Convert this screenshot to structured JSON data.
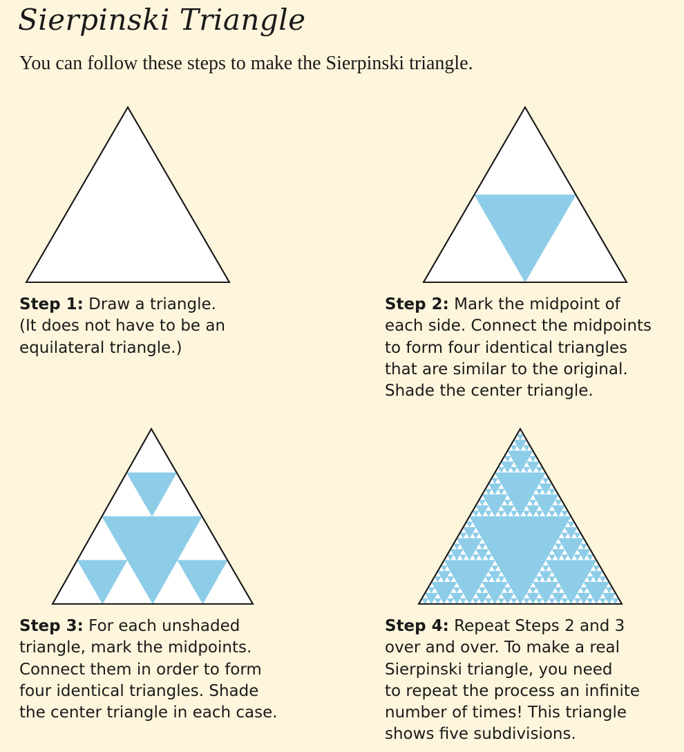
{
  "title": "Sierpinski Triangle",
  "intro": "You can follow these steps to make the Sierpinski triangle.",
  "colors": {
    "background": "#fdf5dc",
    "shade": "#8ecde8",
    "triangle_fill": "#ffffff",
    "outline": "#1a1a1a"
  },
  "steps": [
    {
      "label": "Step 1:",
      "lines": [
        "Draw a triangle.",
        "(It does not have to be an",
        "equilateral triangle.)"
      ],
      "subdivisions": 0
    },
    {
      "label": "Step 2:",
      "lines": [
        "Mark the midpoint of",
        "each side. Connect the midpoints",
        "to form four identical triangles",
        "that are similar to the original.",
        "Shade the center triangle."
      ],
      "subdivisions": 1
    },
    {
      "label": "Step 3:",
      "lines": [
        "For each unshaded",
        "triangle, mark the midpoints.",
        "Connect them in order to form",
        "four identical triangles. Shade",
        "the center triangle in each case."
      ],
      "subdivisions": 2
    },
    {
      "label": "Step 4:",
      "lines": [
        "Repeat Steps 2 and 3",
        "over and over. To make a real",
        "Sierpinski triangle, you need",
        "to repeat the process an infinite",
        "number of times! This triangle",
        "shows five subdivisions."
      ],
      "subdivisions": 5
    }
  ]
}
